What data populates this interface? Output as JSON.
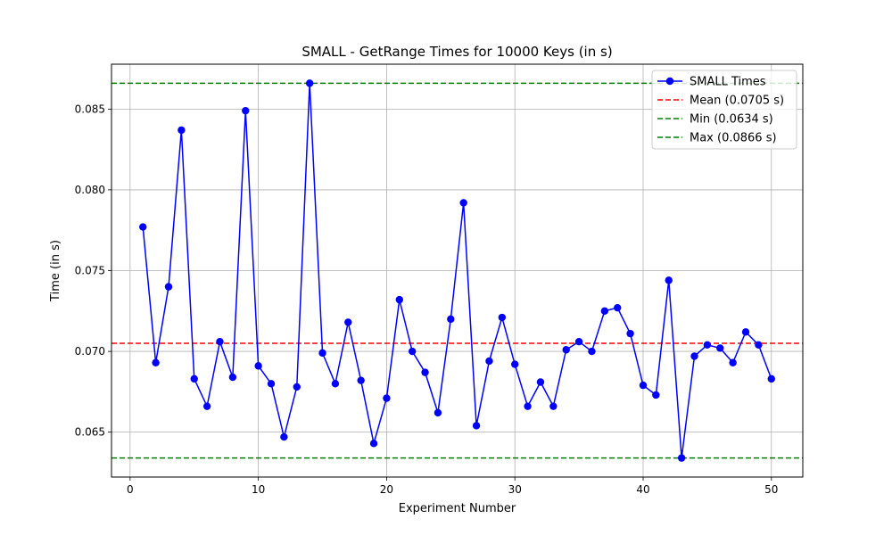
{
  "chart_data": {
    "type": "line",
    "title": "SMALL - GetRange Times for 10000 Keys (in s)",
    "xlabel": "Experiment Number",
    "ylabel": "Time (in s)",
    "xlim": [
      -1.45,
      52.45
    ],
    "ylim": [
      0.06222,
      0.08778
    ],
    "xticks": [
      0,
      10,
      20,
      30,
      40,
      50
    ],
    "xtick_labels": [
      "0",
      "10",
      "20",
      "30",
      "40",
      "50"
    ],
    "yticks": [
      0.065,
      0.07,
      0.075,
      0.08,
      0.085
    ],
    "ytick_labels": [
      "0.065",
      "0.070",
      "0.075",
      "0.080",
      "0.085"
    ],
    "grid": true,
    "legend_position": "top-right",
    "series": [
      {
        "name": "SMALL Times",
        "color": "#0000ff",
        "marker": "circle",
        "x": [
          1,
          2,
          3,
          4,
          5,
          6,
          7,
          8,
          9,
          10,
          11,
          12,
          13,
          14,
          15,
          16,
          17,
          18,
          19,
          20,
          21,
          22,
          23,
          24,
          25,
          26,
          27,
          28,
          29,
          30,
          31,
          32,
          33,
          34,
          35,
          36,
          37,
          38,
          39,
          40,
          41,
          42,
          43,
          44,
          45,
          46,
          47,
          48,
          49,
          50
        ],
        "values": [
          0.0777,
          0.0693,
          0.074,
          0.0837,
          0.0683,
          0.0666,
          0.0706,
          0.0684,
          0.0849,
          0.0691,
          0.068,
          0.0647,
          0.0678,
          0.0866,
          0.0699,
          0.068,
          0.0718,
          0.0682,
          0.0643,
          0.0671,
          0.0732,
          0.07,
          0.0687,
          0.0662,
          0.072,
          0.0792,
          0.0654,
          0.0694,
          0.0721,
          0.0692,
          0.0666,
          0.0681,
          0.0666,
          0.0701,
          0.0706,
          0.07,
          0.0725,
          0.0727,
          0.0711,
          0.0679,
          0.0673,
          0.0744,
          0.0634,
          0.0697,
          0.0704,
          0.0702,
          0.0693,
          0.0712,
          0.0704,
          0.0683
        ]
      }
    ],
    "reference_lines": [
      {
        "name": "Mean (0.0705 s)",
        "value": 0.0705,
        "color": "#ff0000",
        "style": "dashed"
      },
      {
        "name": "Min (0.0634 s)",
        "value": 0.0634,
        "color": "#008000",
        "style": "dashed"
      },
      {
        "name": "Max (0.0866 s)",
        "value": 0.0866,
        "color": "#008000",
        "style": "dashed"
      }
    ]
  }
}
